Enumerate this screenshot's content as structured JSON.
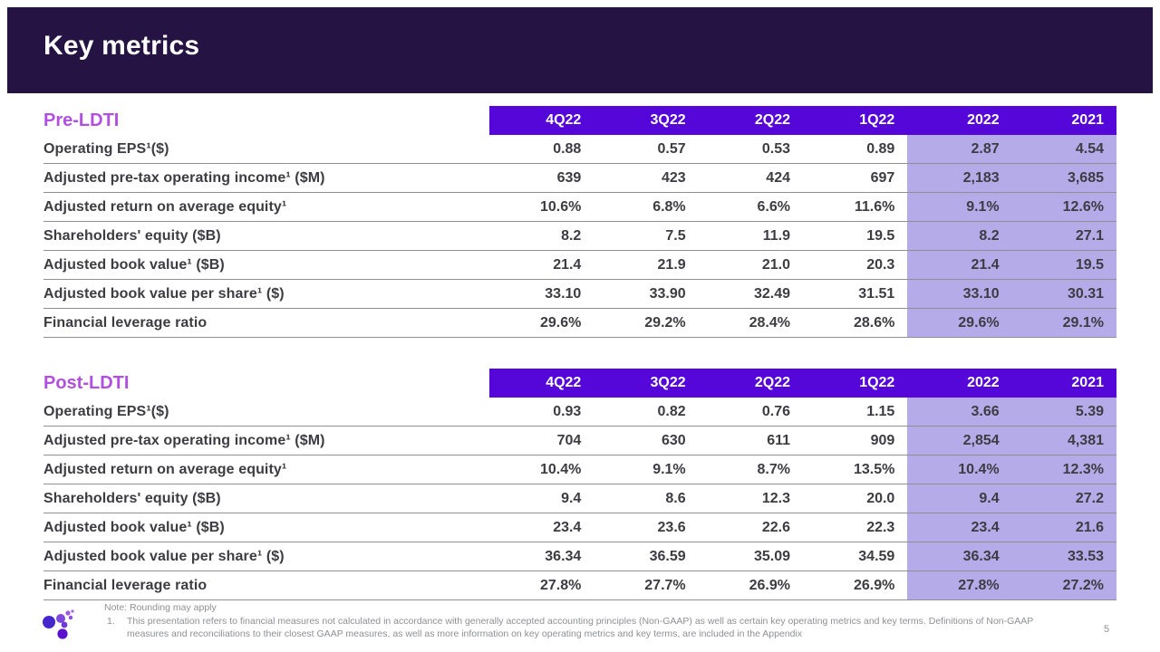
{
  "banner": {
    "title": "Key metrics"
  },
  "columns": [
    "4Q22",
    "3Q22",
    "2Q22",
    "1Q22",
    "2022",
    "2021"
  ],
  "highlight_from_index": 4,
  "tables": [
    {
      "section_title": "Pre-LDTI",
      "rows": [
        {
          "label": "Operating EPS¹($)",
          "values": [
            "0.88",
            "0.57",
            "0.53",
            "0.89",
            "2.87",
            "4.54"
          ]
        },
        {
          "label": "Adjusted pre-tax operating income¹ ($M)",
          "values": [
            "639",
            "423",
            "424",
            "697",
            "2,183",
            "3,685"
          ]
        },
        {
          "label": "Adjusted return on average equity¹",
          "values": [
            "10.6%",
            "6.8%",
            "6.6%",
            "11.6%",
            "9.1%",
            "12.6%"
          ]
        },
        {
          "label": "Shareholders' equity ($B)",
          "values": [
            "8.2",
            "7.5",
            "11.9",
            "19.5",
            "8.2",
            "27.1"
          ]
        },
        {
          "label": "Adjusted book value¹ ($B)",
          "values": [
            "21.4",
            "21.9",
            "21.0",
            "20.3",
            "21.4",
            "19.5"
          ]
        },
        {
          "label": "Adjusted book value per share¹ ($)",
          "values": [
            "33.10",
            "33.90",
            "32.49",
            "31.51",
            "33.10",
            "30.31"
          ]
        },
        {
          "label": "Financial leverage ratio",
          "values": [
            "29.6%",
            "29.2%",
            "28.4%",
            "28.6%",
            "29.6%",
            "29.1%"
          ]
        }
      ]
    },
    {
      "section_title": "Post-LDTI",
      "rows": [
        {
          "label": "Operating EPS¹($)",
          "values": [
            "0.93",
            "0.82",
            "0.76",
            "1.15",
            "3.66",
            "5.39"
          ]
        },
        {
          "label": "Adjusted pre-tax operating income¹ ($M)",
          "values": [
            "704",
            "630",
            "611",
            "909",
            "2,854",
            "4,381"
          ]
        },
        {
          "label": "Adjusted return on average equity¹",
          "values": [
            "10.4%",
            "9.1%",
            "8.7%",
            "13.5%",
            "10.4%",
            "12.3%"
          ]
        },
        {
          "label": "Shareholders' equity ($B)",
          "values": [
            "9.4",
            "8.6",
            "12.3",
            "20.0",
            "9.4",
            "27.2"
          ]
        },
        {
          "label": "Adjusted book value¹ ($B)",
          "values": [
            "23.4",
            "23.6",
            "22.6",
            "22.3",
            "23.4",
            "21.6"
          ]
        },
        {
          "label": "Adjusted book value per share¹ ($)",
          "values": [
            "36.34",
            "36.59",
            "35.09",
            "34.59",
            "36.34",
            "33.53"
          ]
        },
        {
          "label": "Financial leverage ratio",
          "values": [
            "27.8%",
            "27.7%",
            "26.9%",
            "26.9%",
            "27.8%",
            "27.2%"
          ]
        }
      ]
    }
  ],
  "footer": {
    "note": "Note:  Rounding may apply",
    "footnote_number": "1.",
    "footnote_text": "This presentation refers to financial measures not calculated in accordance with generally accepted accounting principles (Non-GAAP) as well as certain key operating metrics and key terms.  Definitions of Non-GAAP measures and reconciliations to their closest GAAP measures, as well as more information on key operating metrics and key terms, are included in the Appendix",
    "page_number": "5"
  },
  "colors": {
    "banner_bg": "#241343",
    "table_header_bg": "#5507d9",
    "highlight_bg": "#b5abe9",
    "section_title": "#b14fe0",
    "body_text": "#3d3c43",
    "separator_line": "#8f8f8f",
    "footer_text": "#8f9093"
  }
}
